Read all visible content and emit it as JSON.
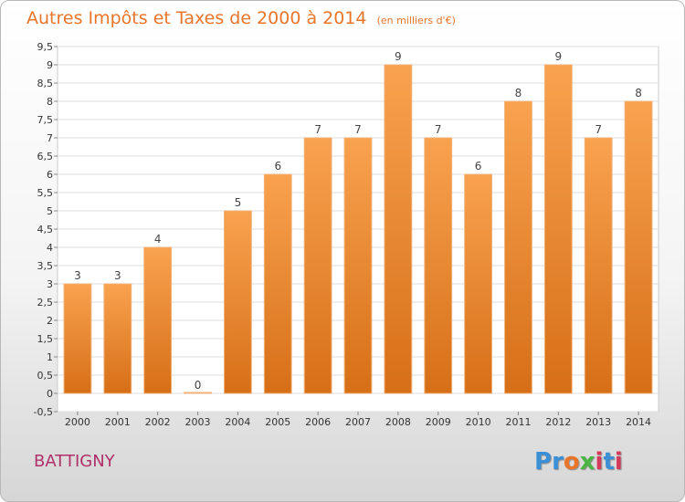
{
  "header": {
    "title": "Autres Impôts et Taxes de 2000 à 2014",
    "subtitle": "(en milliers d'€)"
  },
  "footer": {
    "town": "BATTIGNY",
    "brand": [
      "P",
      "r",
      "o",
      "x",
      "i",
      "t",
      "i"
    ],
    "brand_colors": [
      "#3a8fd6",
      "#3a8fd6",
      "#e8752a",
      "#4bb543",
      "#d63a5a",
      "#3a8fd6",
      "#d63a5a"
    ]
  },
  "colors": {
    "bar_top": "#f9a24f",
    "bar_bottom": "#d66f17",
    "bar_edge": "#f0b27a",
    "grid": "#dddddd",
    "axis_text": "#333333",
    "value_label": "#444444",
    "title": "#e8752a"
  },
  "chart_data": {
    "type": "bar",
    "title": "Autres Impôts et Taxes de 2000 à 2014",
    "subtitle": "(en milliers d'€)",
    "xlabel": "",
    "ylabel": "",
    "categories": [
      "2000",
      "2001",
      "2002",
      "2003",
      "2004",
      "2005",
      "2006",
      "2007",
      "2008",
      "2009",
      "2010",
      "2011",
      "2012",
      "2013",
      "2014"
    ],
    "values": [
      3,
      3,
      4,
      0,
      5,
      6,
      7,
      7,
      9,
      7,
      6,
      8,
      9,
      7,
      8
    ],
    "value_labels": [
      "3",
      "3",
      "4",
      "0",
      "5",
      "6",
      "7",
      "7",
      "9",
      "7",
      "6",
      "8",
      "9",
      "7",
      "8"
    ],
    "ylim": [
      -0.5,
      9.5
    ],
    "yticks": [
      "-0,5",
      "0",
      "0,5",
      "1",
      "1,5",
      "2",
      "2,5",
      "3",
      "3,5",
      "4",
      "4,5",
      "5",
      "5,5",
      "6",
      "6,5",
      "7",
      "7,5",
      "8",
      "8,5",
      "9",
      "9,5"
    ],
    "ytick_values": [
      -0.5,
      0,
      0.5,
      1,
      1.5,
      2,
      2.5,
      3,
      3.5,
      4,
      4.5,
      5,
      5.5,
      6,
      6.5,
      7,
      7.5,
      8,
      8.5,
      9,
      9.5
    ],
    "grid": true,
    "legend": "none"
  }
}
